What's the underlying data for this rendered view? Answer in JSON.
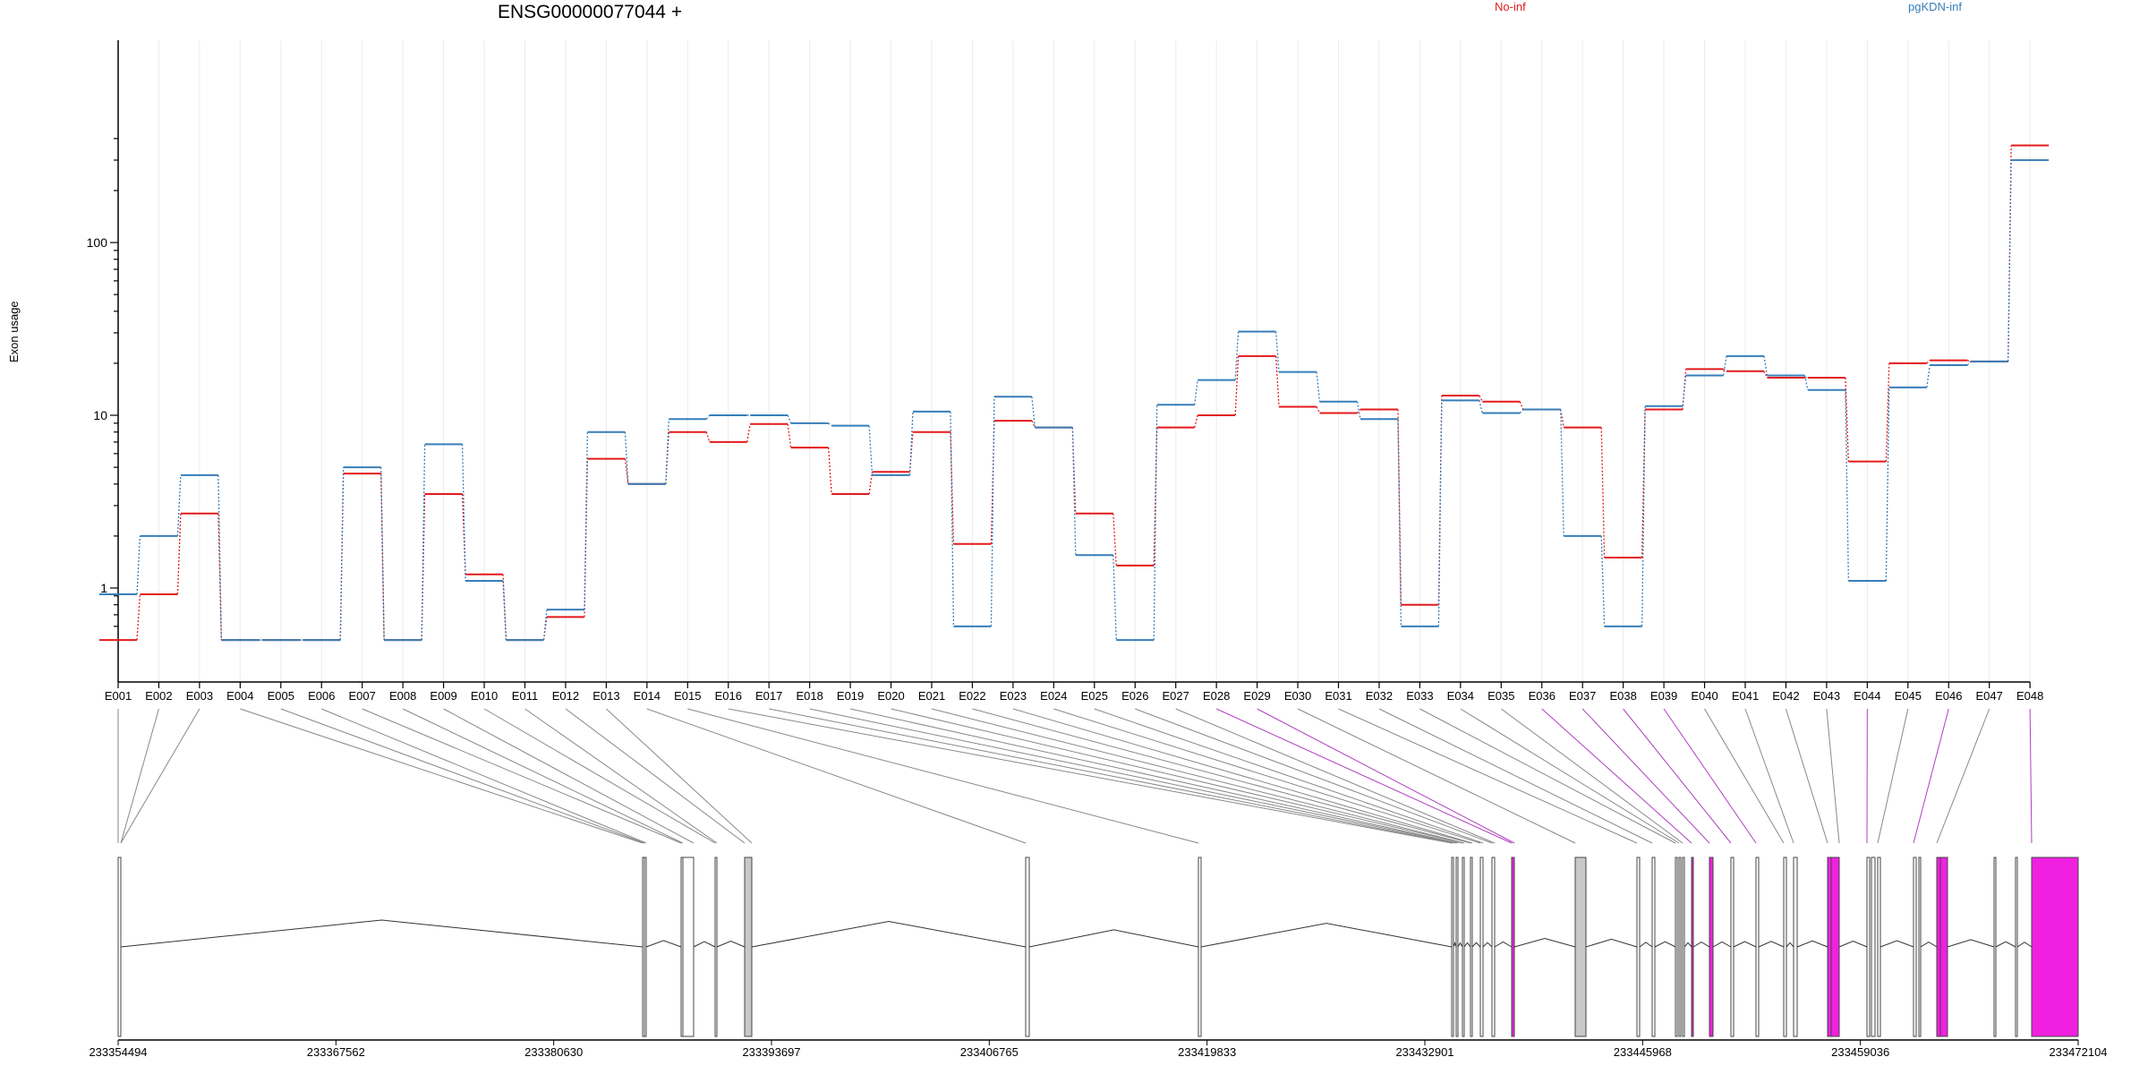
{
  "chart_data": {
    "type": "line",
    "title": "ENSG00000077044 +",
    "ylabel": "Exon usage",
    "xlabel": "",
    "yscale": "log",
    "ylim": [
      0.45,
      420
    ],
    "yticks": [
      {
        "v": 1,
        "label": "1"
      },
      {
        "v": 10,
        "label": "10"
      },
      {
        "v": 100,
        "label": "100"
      }
    ],
    "categories": [
      "E001",
      "E002",
      "E003",
      "E004",
      "E005",
      "E006",
      "E007",
      "E008",
      "E009",
      "E010",
      "E011",
      "E012",
      "E013",
      "E014",
      "E015",
      "E016",
      "E017",
      "E018",
      "E019",
      "E020",
      "E021",
      "E022",
      "E023",
      "E024",
      "E025",
      "E026",
      "E027",
      "E028",
      "E029",
      "E030",
      "E031",
      "E032",
      "E033",
      "E034",
      "E035",
      "E036",
      "E037",
      "E038",
      "E039",
      "E040",
      "E041",
      "E042",
      "E043",
      "E044",
      "E045",
      "E046",
      "E047",
      "E048"
    ],
    "legend": [
      "No-inf",
      "pgKDN-inf"
    ],
    "series": [
      {
        "name": "No-inf",
        "color": "#e41a1c",
        "values": [
          0.5,
          0.92,
          2.7,
          0.5,
          0.5,
          0.5,
          4.6,
          0.5,
          3.5,
          1.2,
          0.5,
          0.68,
          5.6,
          4.0,
          8.0,
          7.0,
          8.9,
          6.5,
          3.5,
          4.7,
          8.0,
          1.8,
          9.3,
          8.5,
          2.7,
          1.35,
          8.5,
          10.0,
          22.0,
          11.2,
          10.3,
          10.8,
          0.8,
          13.0,
          12.0,
          10.8,
          8.5,
          1.5,
          10.8,
          18.5,
          18.0,
          16.5,
          16.5,
          5.4,
          20.0,
          20.8,
          20.5,
          365
        ]
      },
      {
        "name": "pgKDN-inf",
        "color": "#377eb8",
        "values": [
          0.92,
          2.0,
          4.5,
          0.5,
          0.5,
          0.5,
          5.0,
          0.5,
          6.8,
          1.1,
          0.5,
          0.75,
          8.0,
          4.0,
          9.5,
          10.0,
          10.0,
          9.0,
          8.7,
          4.5,
          10.5,
          0.6,
          12.8,
          8.5,
          1.55,
          0.5,
          11.5,
          16.0,
          30.5,
          17.8,
          12.0,
          9.5,
          0.6,
          12.2,
          10.3,
          10.8,
          2.0,
          0.6,
          11.3,
          17.0,
          22.0,
          17.0,
          14.0,
          1.1,
          14.5,
          19.5,
          20.5,
          300
        ]
      }
    ],
    "gene_model": {
      "coord_ticks": [
        "233354494",
        "233367562",
        "233380630",
        "233393697",
        "233406765",
        "233419833",
        "233432901",
        "233445968",
        "233459036",
        "233472104"
      ]
    }
  }
}
